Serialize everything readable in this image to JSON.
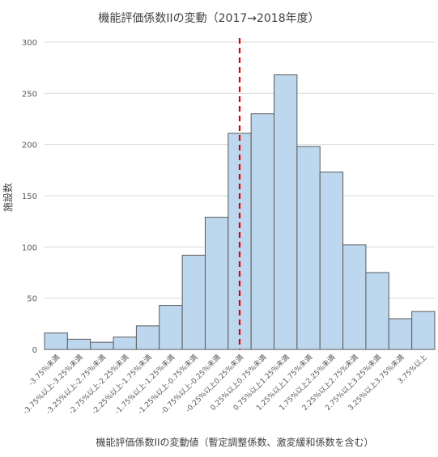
{
  "chart_data": {
    "type": "bar",
    "title": "機能評価係数IIの変動（2017→2018年度）",
    "xlabel": "機能評価係数IIの変動値（暫定調整係数、激変緩和係数を含む）",
    "ylabel": "施設数",
    "categories": [
      "-3.75%未満",
      "-3.75%以上-3.25%未満",
      "-3.25%以上-2.75%未満",
      "-2.75%以上-2.25%未満",
      "-2.25%以上-1.75%未満",
      "-1.75%以上-1.25%未満",
      "-1.25%以上-0.75%未満",
      "-0.75%以上-0.25%未満",
      "-0.25%以上0.25%未満",
      "0.25%以上0.75%未満",
      "0.75%以上1.25%未満",
      "1.25%以上1.75%未満",
      "1.75%以上2.25%未満",
      "2.25%以上2.75%未満",
      "2.75%以上3.25%未満",
      "3.25%以上3.75%未満",
      "3.75%以上"
    ],
    "values": [
      16,
      10,
      7,
      12,
      23,
      43,
      92,
      129,
      211,
      230,
      268,
      198,
      173,
      102,
      75,
      30,
      37
    ],
    "ylim": [
      0,
      300
    ],
    "yticks": [
      0,
      50,
      100,
      150,
      200,
      250,
      300
    ],
    "grid": true,
    "reference_line": {
      "x": 0,
      "color": "#e00000",
      "style": "dashed"
    },
    "colors": {
      "bar_fill": "#bdd7ee",
      "bar_stroke": "#5a5a5a",
      "grid": "#d9d9d9"
    }
  }
}
